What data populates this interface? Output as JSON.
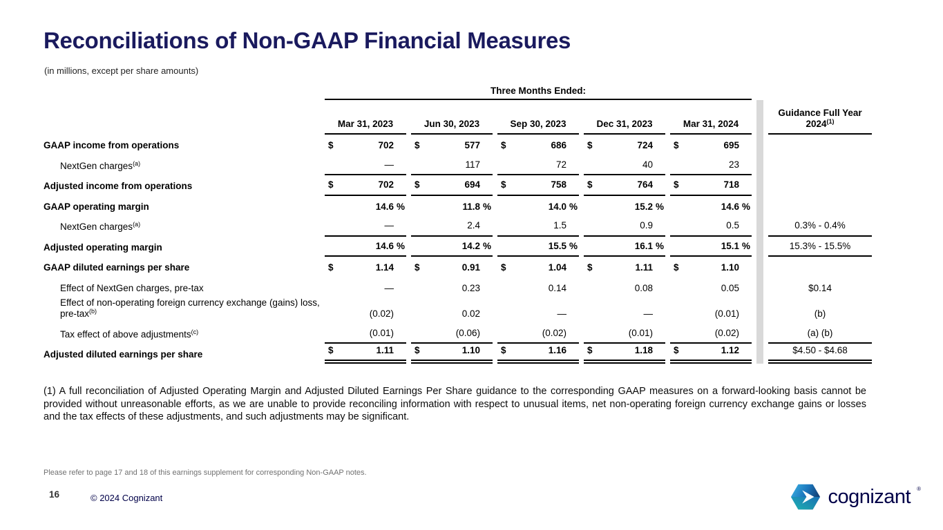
{
  "slide": {
    "title": "Reconciliations of Non-GAAP Financial Measures",
    "subtitle": "(in millions, except per share amounts)",
    "footnote": "(1) A full reconciliation of Adjusted Operating Margin and Adjusted Diluted Earnings Per Share guidance to the corresponding GAAP measures on a forward-looking basis cannot be provided without unreasonable efforts, as we are unable to provide reconciling information with respect to unusual items, net non-operating foreign currency exchange gains or losses and the tax effects of these adjustments, and such adjustments may be significant.",
    "note": "Please refer to page 17 and 18 of this earnings supplement for corresponding Non-GAAP notes.",
    "page_number": "16",
    "copyright": "© 2024 Cognizant",
    "logo_text": "cognizant",
    "colors": {
      "title_navy": "#1a1a5e",
      "brand_navy": "#000048",
      "divider_gray": "#d9d9d9",
      "logo_blue_light": "#3cb4e5",
      "logo_blue_dark": "#123a6d",
      "logo_teal": "#1db5ae"
    }
  },
  "table": {
    "group_header": "Three Months Ended:",
    "columns": [
      "Mar 31, 2023",
      "Jun 30, 2023",
      "Sep 30, 2023",
      "Dec 31, 2023",
      "Mar 31, 2024"
    ],
    "guidance_header_line1": "Guidance Full Year",
    "guidance_header_line2": "2024",
    "guidance_sup": "(1)",
    "rows": [
      {
        "label": "GAAP income from operations",
        "sup": "",
        "bold": true,
        "indent": false,
        "prefix": "$",
        "suffix": "",
        "values": [
          "702",
          "577",
          "686",
          "724",
          "695"
        ],
        "guidance": "",
        "line_below": false,
        "double_below": false,
        "guidance_line": false,
        "guidance_double": false
      },
      {
        "label": "NextGen charges",
        "sup": "(a)",
        "bold": false,
        "indent": true,
        "prefix": "",
        "suffix": "",
        "values": [
          "—",
          "117",
          "72",
          "40",
          "23"
        ],
        "guidance": "",
        "line_below": true,
        "double_below": false,
        "guidance_line": false,
        "guidance_double": false
      },
      {
        "label": "Adjusted income from operations",
        "sup": "",
        "bold": true,
        "indent": false,
        "prefix": "$",
        "suffix": "",
        "values": [
          "702",
          "694",
          "758",
          "764",
          "718"
        ],
        "guidance": "",
        "line_below": true,
        "double_below": false,
        "guidance_line": false,
        "guidance_double": false
      },
      {
        "label": "GAAP operating margin",
        "sup": "",
        "bold": true,
        "indent": false,
        "prefix": "",
        "suffix": "%",
        "values": [
          "14.6",
          "11.8",
          "14.0",
          "15.2",
          "14.6"
        ],
        "guidance": "",
        "line_below": false,
        "double_below": false,
        "guidance_line": false,
        "guidance_double": false
      },
      {
        "label": "NextGen charges",
        "sup": "(a)",
        "bold": false,
        "indent": true,
        "prefix": "",
        "suffix": "",
        "values": [
          "—",
          "2.4",
          "1.5",
          "0.9",
          "0.5"
        ],
        "guidance": "0.3% - 0.4%",
        "line_below": true,
        "double_below": false,
        "guidance_line": true,
        "guidance_double": false
      },
      {
        "label": "Adjusted operating margin",
        "sup": "",
        "bold": true,
        "indent": false,
        "prefix": "",
        "suffix": "%",
        "values": [
          "14.6",
          "14.2",
          "15.5",
          "16.1",
          "15.1"
        ],
        "guidance": "15.3% - 15.5%",
        "line_below": true,
        "double_below": false,
        "guidance_line": true,
        "guidance_double": false
      },
      {
        "label": "GAAP diluted earnings per share",
        "sup": "",
        "bold": true,
        "indent": false,
        "prefix": "$",
        "suffix": "",
        "values": [
          "1.14",
          "0.91",
          "1.04",
          "1.11",
          "1.10"
        ],
        "guidance": "",
        "line_below": false,
        "double_below": false,
        "guidance_line": false,
        "guidance_double": false
      },
      {
        "label": "Effect of NextGen charges, pre-tax",
        "sup": "",
        "bold": false,
        "indent": true,
        "prefix": "",
        "suffix": "",
        "values": [
          "—",
          "0.23",
          "0.14",
          "0.08",
          "0.05"
        ],
        "guidance": "$0.14",
        "line_below": false,
        "double_below": false,
        "guidance_line": false,
        "guidance_double": false
      },
      {
        "label": "Effect of non-operating foreign currency exchange (gains) loss, pre-tax",
        "sup": "(b)",
        "bold": false,
        "indent": true,
        "prefix": "",
        "suffix": "",
        "values": [
          "(0.02)",
          "0.02",
          "—",
          "—",
          "(0.01)"
        ],
        "guidance": "(b)",
        "line_below": false,
        "double_below": false,
        "guidance_line": false,
        "guidance_double": false
      },
      {
        "label": "Tax effect of above adjustments",
        "sup": "(c)",
        "bold": false,
        "indent": true,
        "prefix": "",
        "suffix": "",
        "values": [
          "(0.01)",
          "(0.06)",
          "(0.02)",
          "(0.01)",
          "(0.02)"
        ],
        "guidance": "(a) (b)",
        "line_below": true,
        "double_below": false,
        "guidance_line": true,
        "guidance_double": false
      },
      {
        "label": "Adjusted diluted earnings per share",
        "sup": "",
        "bold": true,
        "indent": false,
        "prefix": "$",
        "suffix": "",
        "values": [
          "1.11",
          "1.10",
          "1.16",
          "1.18",
          "1.12"
        ],
        "guidance": "$4.50 - $4.68",
        "line_below": false,
        "double_below": true,
        "guidance_line": false,
        "guidance_double": true
      }
    ]
  }
}
